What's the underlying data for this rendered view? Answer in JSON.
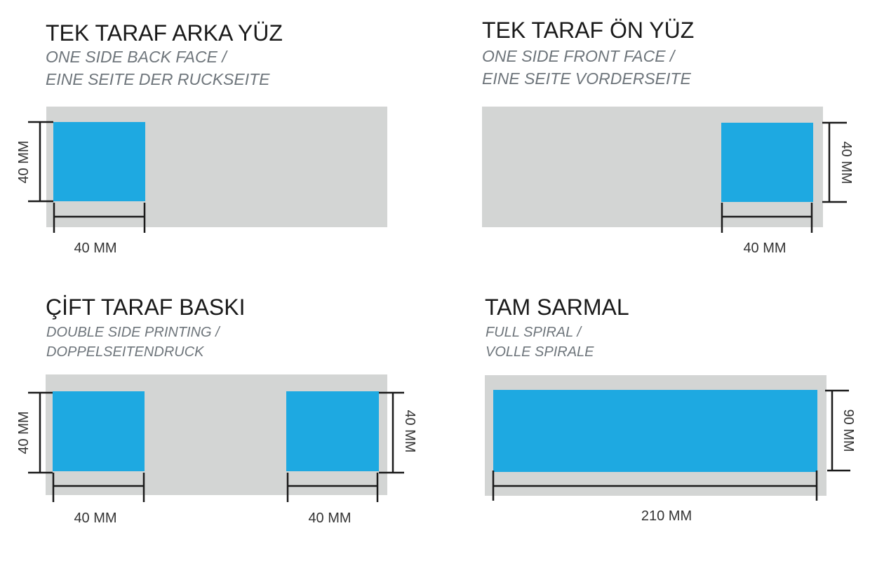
{
  "colors": {
    "sheet": "#d3d5d4",
    "print_area": "#1ea9e1",
    "dimension_line": "#1a1a1a"
  },
  "panels": [
    {
      "title": "TEK TARAF ARKA YÜZ",
      "subtitle_en": "ONE SIDE BACK FACE /",
      "subtitle_de": "EINE SEITE DER RUCKSEITE",
      "width_label": "40 MM",
      "height_label": "40 MM"
    },
    {
      "title": "TEK TARAF ÖN YÜZ",
      "subtitle_en": "ONE SIDE FRONT FACE /",
      "subtitle_de": "EINE SEITE VORDERSEITE",
      "width_label": "40 MM",
      "height_label": "40 MM"
    },
    {
      "title": "ÇİFT TARAF BASKI",
      "subtitle_en": "DOUBLE SIDE PRINTING /",
      "subtitle_de": "DOPPELSEITENDRUCK",
      "left_width_label": "40 MM",
      "left_height_label": "40 MM",
      "right_width_label": "40 MM",
      "right_height_label": "40 MM"
    },
    {
      "title": "TAM SARMAL",
      "subtitle_en": "FULL SPIRAL /",
      "subtitle_de": "VOLLE SPIRALE",
      "width_label": "210 MM",
      "height_label": "90 MM"
    }
  ]
}
